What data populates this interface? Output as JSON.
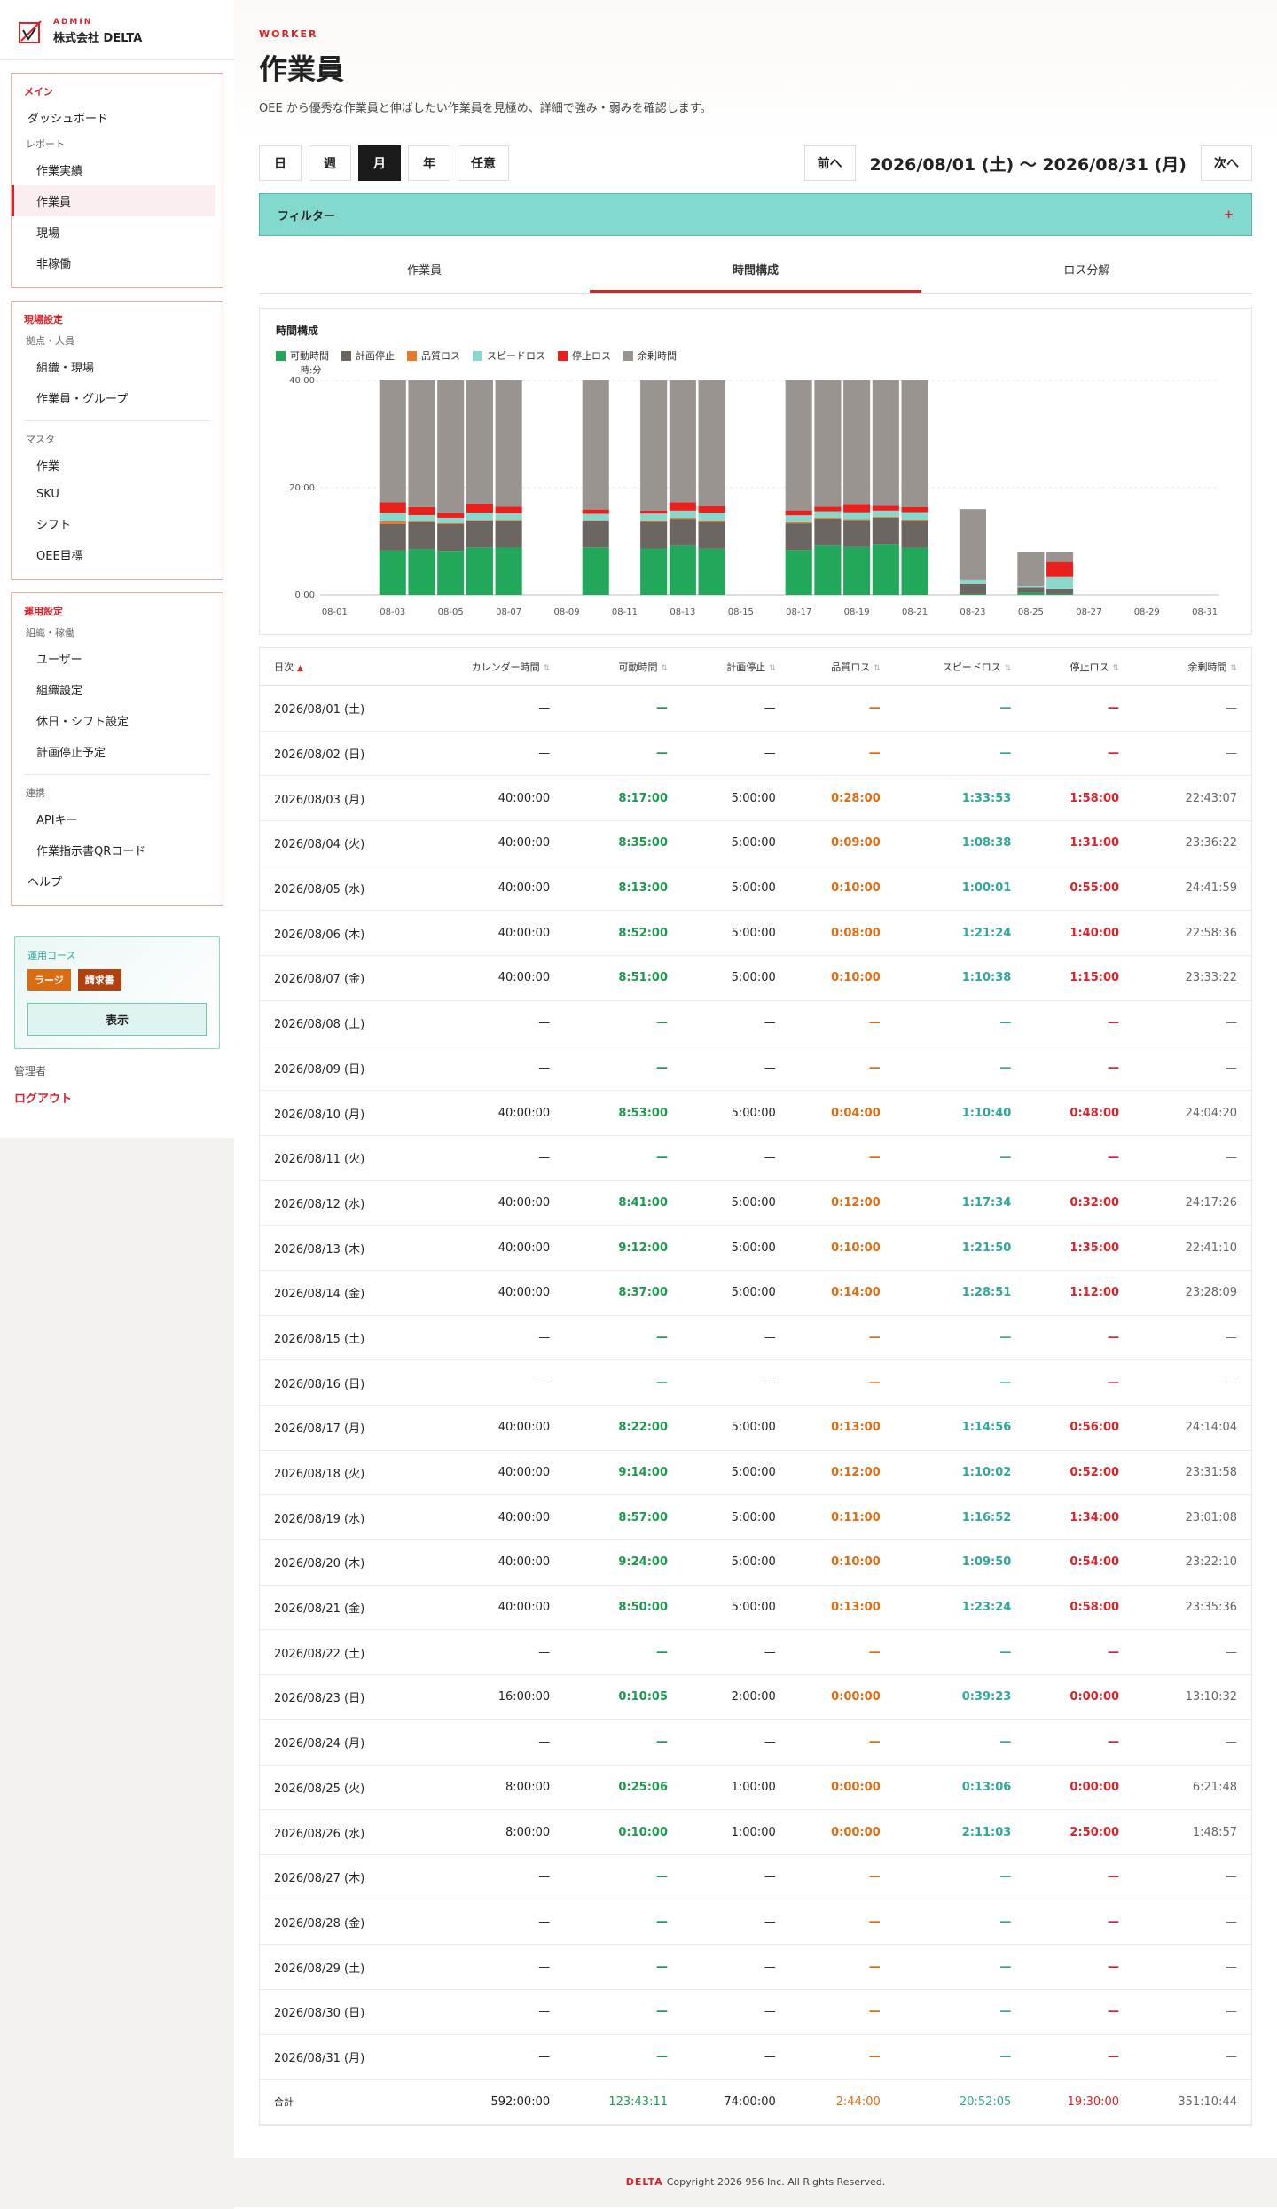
{
  "brand": {
    "eyebrow": "ADMIN",
    "name": "株式会社 DELTA"
  },
  "sidebar": {
    "main": {
      "head": "メイン",
      "dashboard": "ダッシュボード",
      "report_label": "レポート",
      "items": [
        "作業実績",
        "作業員",
        "現場",
        "非稼働"
      ]
    },
    "site": {
      "head": "現場設定",
      "group1_label": "拠点・人員",
      "group1": [
        "組織・現場",
        "作業員・グループ"
      ],
      "group2_label": "マスタ",
      "group2": [
        "作業",
        "SKU",
        "シフト",
        "OEE目標"
      ]
    },
    "ops": {
      "head": "運用設定",
      "group1_label": "組織・稼働",
      "group1": [
        "ユーザー",
        "組織設定",
        "休日・シフト設定",
        "計画停止予定"
      ],
      "group2_label": "連携",
      "group2": [
        "APIキー",
        "作業指示書QRコード"
      ],
      "help": "ヘルプ"
    },
    "plan": {
      "title": "運用コース",
      "badge1": "ラージ",
      "badge2": "請求書",
      "button": "表示"
    },
    "admin": "管理者",
    "logout": "ログアウト"
  },
  "header": {
    "eyebrow": "WORKER",
    "title": "作業員",
    "desc": "OEE から優秀な作業員と伸ばしたい作業員を見極め、詳細で強み・弱みを確認します。"
  },
  "toolbar": {
    "periods": [
      "日",
      "週",
      "月",
      "年",
      "任意"
    ],
    "selected": "月",
    "prev": "前へ",
    "next": "次へ",
    "range": "2026/08/01 (土) 〜 2026/08/31 (月)"
  },
  "filter": {
    "label": "フィルター",
    "plus": "+"
  },
  "tabs": [
    "作業員",
    "時間構成",
    "ロス分解"
  ],
  "chart_data": {
    "type": "bar",
    "title": "時間構成",
    "ylabel": "時:分",
    "ylim": [
      0,
      40
    ],
    "yticks": [
      "0:00",
      "20:00",
      "40:00"
    ],
    "xticks": [
      "08-01",
      "08-03",
      "08-05",
      "08-07",
      "08-09",
      "08-11",
      "08-13",
      "08-15",
      "08-17",
      "08-19",
      "08-21",
      "08-23",
      "08-25",
      "08-27",
      "08-29",
      "08-31"
    ],
    "legend": [
      "可動時間",
      "計画停止",
      "品質ロス",
      "スピードロス",
      "停止ロス",
      "余剰時間"
    ],
    "colors": [
      "#22a85a",
      "#6b6662",
      "#e8782a",
      "#8ad8cc",
      "#e8201e",
      "#9a9490"
    ],
    "categories": [
      "08-01",
      "08-02",
      "08-03",
      "08-04",
      "08-05",
      "08-06",
      "08-07",
      "08-08",
      "08-09",
      "08-10",
      "08-11",
      "08-12",
      "08-13",
      "08-14",
      "08-15",
      "08-16",
      "08-17",
      "08-18",
      "08-19",
      "08-20",
      "08-21",
      "08-22",
      "08-23",
      "08-24",
      "08-25",
      "08-26",
      "08-27",
      "08-28",
      "08-29",
      "08-30",
      "08-31"
    ],
    "series": [
      {
        "name": "可動時間",
        "values": [
          0,
          0,
          8.28,
          8.58,
          8.22,
          8.87,
          8.85,
          0,
          0,
          8.88,
          0,
          8.68,
          9.2,
          8.62,
          0,
          0,
          8.37,
          9.23,
          8.95,
          9.4,
          8.83,
          0,
          0.17,
          0,
          0.42,
          0.17,
          0,
          0,
          0,
          0,
          0
        ]
      },
      {
        "name": "計画停止",
        "values": [
          0,
          0,
          5,
          5,
          5,
          5,
          5,
          0,
          0,
          5,
          0,
          5,
          5,
          5,
          0,
          0,
          5,
          5,
          5,
          5,
          5,
          0,
          2,
          0,
          1,
          1,
          0,
          0,
          0,
          0,
          0
        ]
      },
      {
        "name": "品質ロス",
        "values": [
          0,
          0,
          0.47,
          0.15,
          0.17,
          0.13,
          0.17,
          0,
          0,
          0.07,
          0,
          0.2,
          0.17,
          0.23,
          0,
          0,
          0.22,
          0.2,
          0.18,
          0.17,
          0.22,
          0,
          0,
          0,
          0,
          0,
          0,
          0,
          0,
          0,
          0
        ]
      },
      {
        "name": "スピードロス",
        "values": [
          0,
          0,
          1.56,
          1.14,
          1,
          1.36,
          1.18,
          0,
          0,
          1.18,
          0,
          1.29,
          1.36,
          1.48,
          0,
          0,
          1.25,
          1.17,
          1.28,
          1.16,
          1.39,
          0,
          0.66,
          0,
          0.22,
          2.18,
          0,
          0,
          0,
          0,
          0
        ]
      },
      {
        "name": "停止ロス",
        "values": [
          0,
          0,
          1.97,
          1.52,
          0.92,
          1.67,
          1.25,
          0,
          0,
          0.8,
          0,
          0.53,
          1.58,
          1.2,
          0,
          0,
          0.93,
          0.87,
          1.57,
          0.9,
          0.97,
          0,
          0,
          0,
          0,
          2.83,
          0,
          0,
          0,
          0,
          0
        ]
      },
      {
        "name": "余剰時間",
        "values": [
          0,
          0,
          22.72,
          23.61,
          24.7,
          22.98,
          23.56,
          0,
          0,
          24.07,
          0,
          24.29,
          22.69,
          23.47,
          0,
          0,
          24.23,
          23.53,
          23.02,
          23.37,
          23.59,
          0,
          13.18,
          0,
          6.36,
          1.82,
          0,
          0,
          0,
          0,
          0
        ]
      }
    ]
  },
  "table": {
    "headers": [
      "日次",
      "カレンダー時間",
      "可動時間",
      "計画停止",
      "品質ロス",
      "スピードロス",
      "停止ロス",
      "余剰時間"
    ],
    "rows": [
      [
        "2026/08/01 (土)",
        "—",
        "—",
        "—",
        "—",
        "—",
        "—",
        "—"
      ],
      [
        "2026/08/02 (日)",
        "—",
        "—",
        "—",
        "—",
        "—",
        "—",
        "—"
      ],
      [
        "2026/08/03 (月)",
        "40:00:00",
        "8:17:00",
        "5:00:00",
        "0:28:00",
        "1:33:53",
        "1:58:00",
        "22:43:07"
      ],
      [
        "2026/08/04 (火)",
        "40:00:00",
        "8:35:00",
        "5:00:00",
        "0:09:00",
        "1:08:38",
        "1:31:00",
        "23:36:22"
      ],
      [
        "2026/08/05 (水)",
        "40:00:00",
        "8:13:00",
        "5:00:00",
        "0:10:00",
        "1:00:01",
        "0:55:00",
        "24:41:59"
      ],
      [
        "2026/08/06 (木)",
        "40:00:00",
        "8:52:00",
        "5:00:00",
        "0:08:00",
        "1:21:24",
        "1:40:00",
        "22:58:36"
      ],
      [
        "2026/08/07 (金)",
        "40:00:00",
        "8:51:00",
        "5:00:00",
        "0:10:00",
        "1:10:38",
        "1:15:00",
        "23:33:22"
      ],
      [
        "2026/08/08 (土)",
        "—",
        "—",
        "—",
        "—",
        "—",
        "—",
        "—"
      ],
      [
        "2026/08/09 (日)",
        "—",
        "—",
        "—",
        "—",
        "—",
        "—",
        "—"
      ],
      [
        "2026/08/10 (月)",
        "40:00:00",
        "8:53:00",
        "5:00:00",
        "0:04:00",
        "1:10:40",
        "0:48:00",
        "24:04:20"
      ],
      [
        "2026/08/11 (火)",
        "—",
        "—",
        "—",
        "—",
        "—",
        "—",
        "—"
      ],
      [
        "2026/08/12 (水)",
        "40:00:00",
        "8:41:00",
        "5:00:00",
        "0:12:00",
        "1:17:34",
        "0:32:00",
        "24:17:26"
      ],
      [
        "2026/08/13 (木)",
        "40:00:00",
        "9:12:00",
        "5:00:00",
        "0:10:00",
        "1:21:50",
        "1:35:00",
        "22:41:10"
      ],
      [
        "2026/08/14 (金)",
        "40:00:00",
        "8:37:00",
        "5:00:00",
        "0:14:00",
        "1:28:51",
        "1:12:00",
        "23:28:09"
      ],
      [
        "2026/08/15 (土)",
        "—",
        "—",
        "—",
        "—",
        "—",
        "—",
        "—"
      ],
      [
        "2026/08/16 (日)",
        "—",
        "—",
        "—",
        "—",
        "—",
        "—",
        "—"
      ],
      [
        "2026/08/17 (月)",
        "40:00:00",
        "8:22:00",
        "5:00:00",
        "0:13:00",
        "1:14:56",
        "0:56:00",
        "24:14:04"
      ],
      [
        "2026/08/18 (火)",
        "40:00:00",
        "9:14:00",
        "5:00:00",
        "0:12:00",
        "1:10:02",
        "0:52:00",
        "23:31:58"
      ],
      [
        "2026/08/19 (水)",
        "40:00:00",
        "8:57:00",
        "5:00:00",
        "0:11:00",
        "1:16:52",
        "1:34:00",
        "23:01:08"
      ],
      [
        "2026/08/20 (木)",
        "40:00:00",
        "9:24:00",
        "5:00:00",
        "0:10:00",
        "1:09:50",
        "0:54:00",
        "23:22:10"
      ],
      [
        "2026/08/21 (金)",
        "40:00:00",
        "8:50:00",
        "5:00:00",
        "0:13:00",
        "1:23:24",
        "0:58:00",
        "23:35:36"
      ],
      [
        "2026/08/22 (土)",
        "—",
        "—",
        "—",
        "—",
        "—",
        "—",
        "—"
      ],
      [
        "2026/08/23 (日)",
        "16:00:00",
        "0:10:05",
        "2:00:00",
        "0:00:00",
        "0:39:23",
        "0:00:00",
        "13:10:32"
      ],
      [
        "2026/08/24 (月)",
        "—",
        "—",
        "—",
        "—",
        "—",
        "—",
        "—"
      ],
      [
        "2026/08/25 (火)",
        "8:00:00",
        "0:25:06",
        "1:00:00",
        "0:00:00",
        "0:13:06",
        "0:00:00",
        "6:21:48"
      ],
      [
        "2026/08/26 (水)",
        "8:00:00",
        "0:10:00",
        "1:00:00",
        "0:00:00",
        "2:11:03",
        "2:50:00",
        "1:48:57"
      ],
      [
        "2026/08/27 (木)",
        "—",
        "—",
        "—",
        "—",
        "—",
        "—",
        "—"
      ],
      [
        "2026/08/28 (金)",
        "—",
        "—",
        "—",
        "—",
        "—",
        "—",
        "—"
      ],
      [
        "2026/08/29 (土)",
        "—",
        "—",
        "—",
        "—",
        "—",
        "—",
        "—"
      ],
      [
        "2026/08/30 (日)",
        "—",
        "—",
        "—",
        "—",
        "—",
        "—",
        "—"
      ],
      [
        "2026/08/31 (月)",
        "—",
        "—",
        "—",
        "—",
        "—",
        "—",
        "—"
      ]
    ],
    "total": [
      "合計",
      "592:00:00",
      "123:43:11",
      "74:00:00",
      "2:44:00",
      "20:52:05",
      "19:30:00",
      "351:10:44"
    ]
  },
  "footer": {
    "brand": "DELTA",
    "text": "Copyright 2026 956 Inc. All Rights Reserved."
  }
}
